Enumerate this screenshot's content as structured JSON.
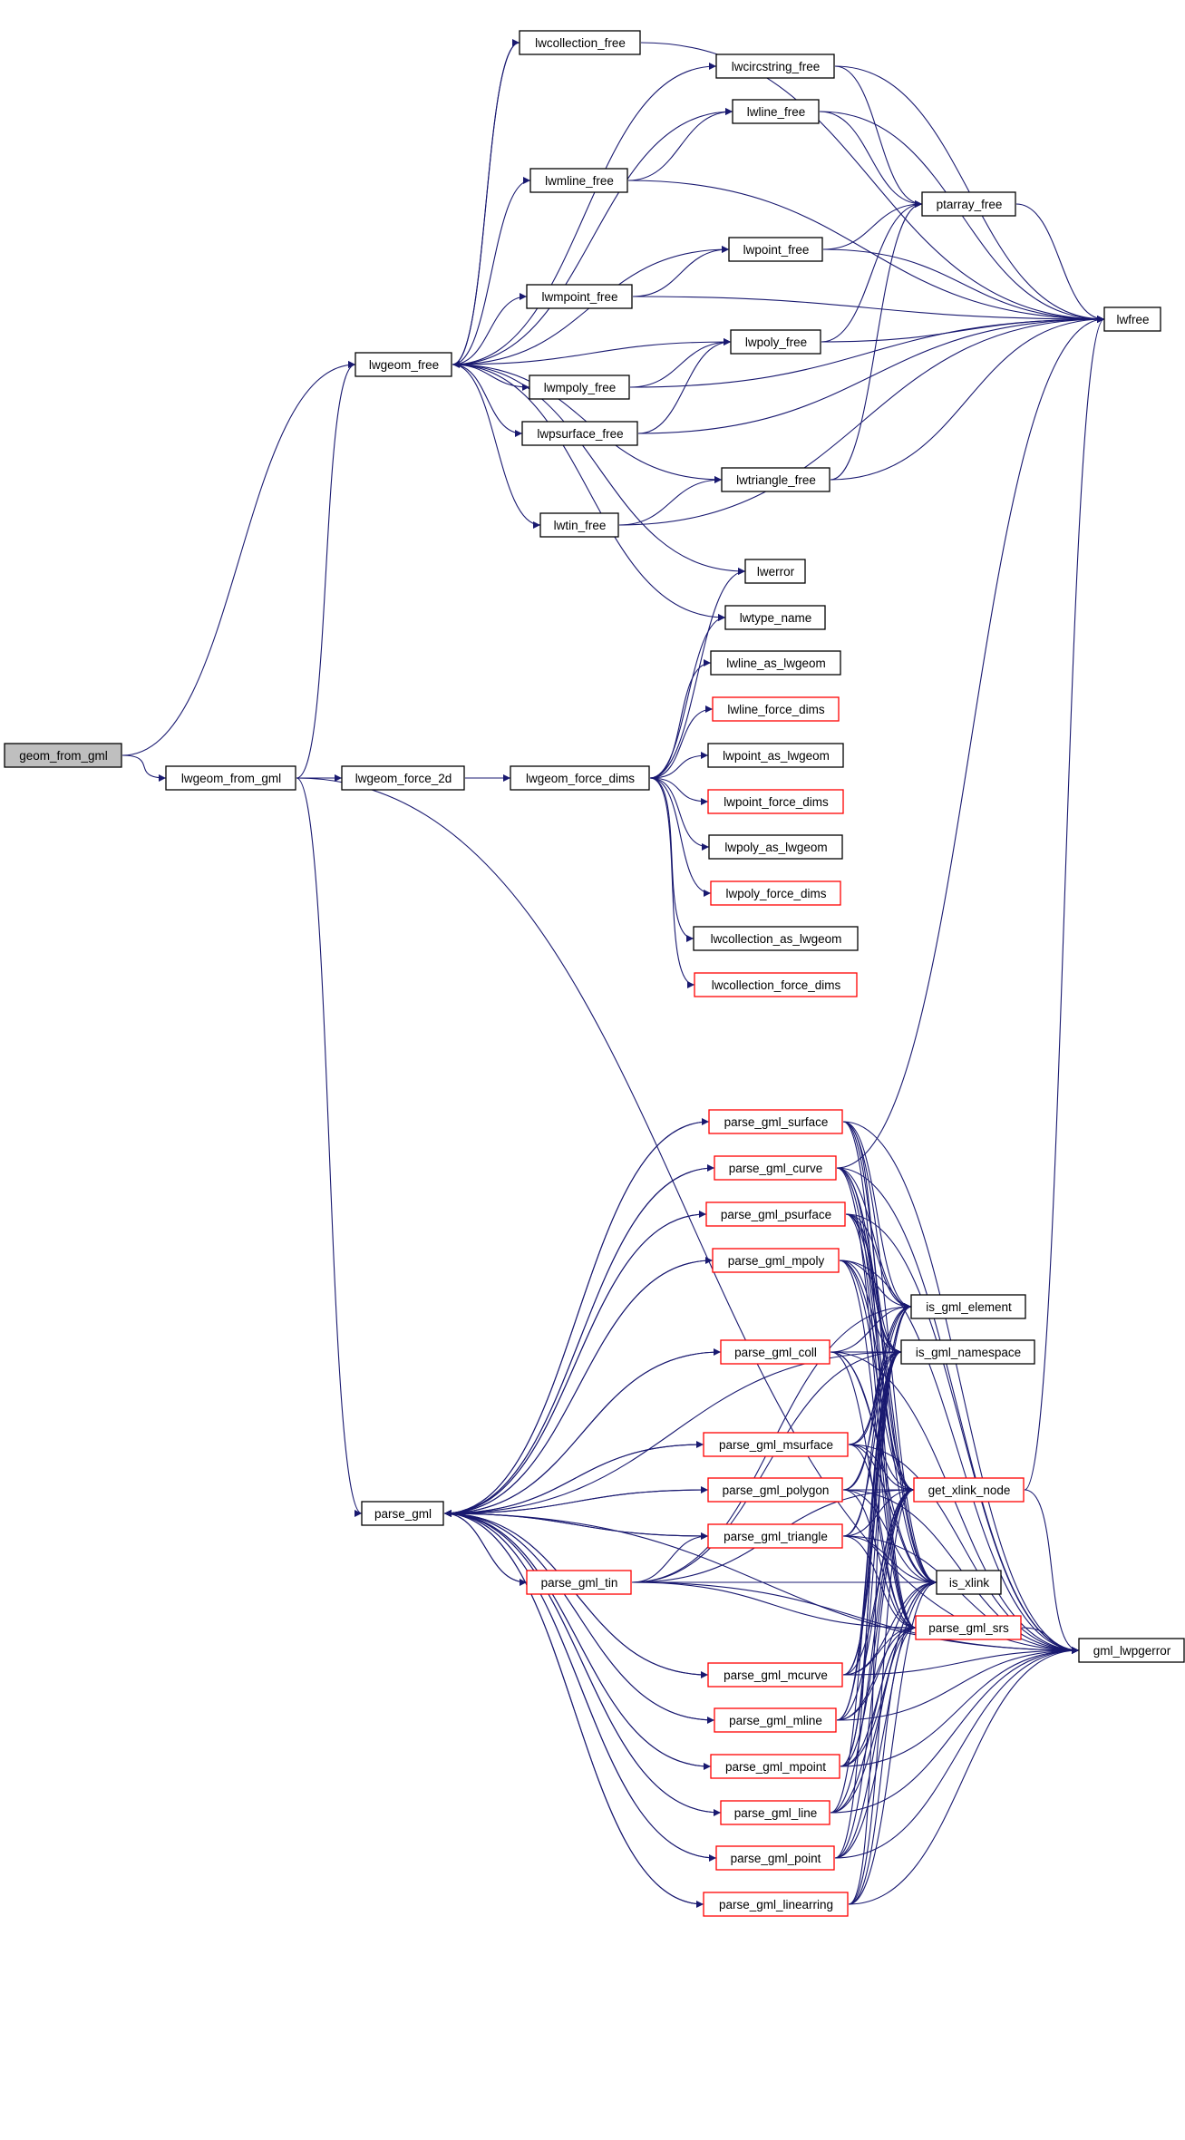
{
  "graph": {
    "type": "call-graph",
    "colors": {
      "edge": "#191970",
      "root_fill": "#bfbfbf",
      "node_fill": "#ffffff",
      "border_default": "#000000",
      "border_truncated": "#ff0000"
    },
    "nodes": [
      {
        "id": "geom_from_gml",
        "label": "geom_from_gml",
        "root": true,
        "truncated": false
      },
      {
        "id": "lwgeom_from_gml",
        "label": "lwgeom_from_gml",
        "truncated": false
      },
      {
        "id": "lwgeom_force_2d",
        "label": "lwgeom_force_2d",
        "truncated": false
      },
      {
        "id": "lwgeom_force_dims",
        "label": "lwgeom_force_dims",
        "truncated": false
      },
      {
        "id": "lwgeom_free",
        "label": "lwgeom_free",
        "truncated": false
      },
      {
        "id": "lwcollection_free",
        "label": "lwcollection_free",
        "truncated": false
      },
      {
        "id": "lwcircstring_free",
        "label": "lwcircstring_free",
        "truncated": false
      },
      {
        "id": "lwline_free",
        "label": "lwline_free",
        "truncated": false
      },
      {
        "id": "lwmline_free",
        "label": "lwmline_free",
        "truncated": false
      },
      {
        "id": "ptarray_free",
        "label": "ptarray_free",
        "truncated": false
      },
      {
        "id": "lwpoint_free",
        "label": "lwpoint_free",
        "truncated": false
      },
      {
        "id": "lwmpoint_free",
        "label": "lwmpoint_free",
        "truncated": false
      },
      {
        "id": "lwfree",
        "label": "lwfree",
        "truncated": false
      },
      {
        "id": "lwpoly_free",
        "label": "lwpoly_free",
        "truncated": false
      },
      {
        "id": "lwmpoly_free",
        "label": "lwmpoly_free",
        "truncated": false
      },
      {
        "id": "lwpsurface_free",
        "label": "lwpsurface_free",
        "truncated": false
      },
      {
        "id": "lwtriangle_free",
        "label": "lwtriangle_free",
        "truncated": false
      },
      {
        "id": "lwtin_free",
        "label": "lwtin_free",
        "truncated": false
      },
      {
        "id": "lwerror",
        "label": "lwerror",
        "truncated": false
      },
      {
        "id": "lwtype_name",
        "label": "lwtype_name",
        "truncated": false
      },
      {
        "id": "lwline_as_lwgeom",
        "label": "lwline_as_lwgeom",
        "truncated": false
      },
      {
        "id": "lwline_force_dims",
        "label": "lwline_force_dims",
        "truncated": true
      },
      {
        "id": "lwpoint_as_lwgeom",
        "label": "lwpoint_as_lwgeom",
        "truncated": false
      },
      {
        "id": "lwpoint_force_dims",
        "label": "lwpoint_force_dims",
        "truncated": true
      },
      {
        "id": "lwpoly_as_lwgeom",
        "label": "lwpoly_as_lwgeom",
        "truncated": false
      },
      {
        "id": "lwpoly_force_dims",
        "label": "lwpoly_force_dims",
        "truncated": true
      },
      {
        "id": "lwcollection_as_lwgeom",
        "label": "lwcollection_as_lwgeom",
        "truncated": false
      },
      {
        "id": "lwcollection_force_dims",
        "label": "lwcollection_force_dims",
        "truncated": true
      },
      {
        "id": "parse_gml",
        "label": "parse_gml",
        "truncated": false
      },
      {
        "id": "parse_gml_surface",
        "label": "parse_gml_surface",
        "truncated": true
      },
      {
        "id": "parse_gml_curve",
        "label": "parse_gml_curve",
        "truncated": true
      },
      {
        "id": "parse_gml_psurface",
        "label": "parse_gml_psurface",
        "truncated": true
      },
      {
        "id": "parse_gml_mpoly",
        "label": "parse_gml_mpoly",
        "truncated": true
      },
      {
        "id": "is_gml_element",
        "label": "is_gml_element",
        "truncated": false
      },
      {
        "id": "parse_gml_coll",
        "label": "parse_gml_coll",
        "truncated": true
      },
      {
        "id": "is_gml_namespace",
        "label": "is_gml_namespace",
        "truncated": false
      },
      {
        "id": "parse_gml_msurface",
        "label": "parse_gml_msurface",
        "truncated": true
      },
      {
        "id": "parse_gml_polygon",
        "label": "parse_gml_polygon",
        "truncated": true
      },
      {
        "id": "get_xlink_node",
        "label": "get_xlink_node",
        "truncated": true
      },
      {
        "id": "parse_gml_triangle",
        "label": "parse_gml_triangle",
        "truncated": true
      },
      {
        "id": "parse_gml_tin",
        "label": "parse_gml_tin",
        "truncated": true
      },
      {
        "id": "is_xlink",
        "label": "is_xlink",
        "truncated": false
      },
      {
        "id": "parse_gml_srs",
        "label": "parse_gml_srs",
        "truncated": true
      },
      {
        "id": "gml_lwpgerror",
        "label": "gml_lwpgerror",
        "truncated": false
      },
      {
        "id": "parse_gml_mcurve",
        "label": "parse_gml_mcurve",
        "truncated": true
      },
      {
        "id": "parse_gml_mline",
        "label": "parse_gml_mline",
        "truncated": true
      },
      {
        "id": "parse_gml_mpoint",
        "label": "parse_gml_mpoint",
        "truncated": true
      },
      {
        "id": "parse_gml_line",
        "label": "parse_gml_line",
        "truncated": true
      },
      {
        "id": "parse_gml_point",
        "label": "parse_gml_point",
        "truncated": true
      },
      {
        "id": "parse_gml_linearring",
        "label": "parse_gml_linearring",
        "truncated": true
      }
    ],
    "edges": [
      [
        "geom_from_gml",
        "lwgeom_free"
      ],
      [
        "geom_from_gml",
        "lwgeom_from_gml"
      ],
      [
        "lwgeom_from_gml",
        "lwgeom_free"
      ],
      [
        "lwgeom_from_gml",
        "lwgeom_force_2d"
      ],
      [
        "lwgeom_from_gml",
        "parse_gml"
      ],
      [
        "lwgeom_from_gml",
        "gml_lwpgerror"
      ],
      [
        "lwgeom_force_2d",
        "lwgeom_force_dims"
      ],
      [
        "lwgeom_force_dims",
        "lwerror"
      ],
      [
        "lwgeom_force_dims",
        "lwtype_name"
      ],
      [
        "lwgeom_force_dims",
        "lwline_as_lwgeom"
      ],
      [
        "lwgeom_force_dims",
        "lwline_force_dims"
      ],
      [
        "lwgeom_force_dims",
        "lwpoint_as_lwgeom"
      ],
      [
        "lwgeom_force_dims",
        "lwpoint_force_dims"
      ],
      [
        "lwgeom_force_dims",
        "lwpoly_as_lwgeom"
      ],
      [
        "lwgeom_force_dims",
        "lwpoly_force_dims"
      ],
      [
        "lwgeom_force_dims",
        "lwcollection_as_lwgeom"
      ],
      [
        "lwgeom_force_dims",
        "lwcollection_force_dims"
      ],
      [
        "lwgeom_free",
        "lwcollection_free"
      ],
      [
        "lwgeom_free",
        "lwcircstring_free"
      ],
      [
        "lwgeom_free",
        "lwline_free"
      ],
      [
        "lwgeom_free",
        "lwmline_free"
      ],
      [
        "lwgeom_free",
        "lwpoint_free"
      ],
      [
        "lwgeom_free",
        "lwmpoint_free"
      ],
      [
        "lwgeom_free",
        "lwpoly_free"
      ],
      [
        "lwgeom_free",
        "lwmpoly_free"
      ],
      [
        "lwgeom_free",
        "lwpsurface_free"
      ],
      [
        "lwgeom_free",
        "lwtriangle_free"
      ],
      [
        "lwgeom_free",
        "lwtin_free"
      ],
      [
        "lwgeom_free",
        "lwerror"
      ],
      [
        "lwgeom_free",
        "lwtype_name"
      ],
      [
        "lwcollection_free",
        "lwgeom_free"
      ],
      [
        "lwcollection_free",
        "lwfree"
      ],
      [
        "lwcircstring_free",
        "ptarray_free"
      ],
      [
        "lwcircstring_free",
        "lwfree"
      ],
      [
        "lwline_free",
        "ptarray_free"
      ],
      [
        "lwline_free",
        "lwfree"
      ],
      [
        "lwmline_free",
        "lwline_free"
      ],
      [
        "lwmline_free",
        "lwfree"
      ],
      [
        "lwpoint_free",
        "ptarray_free"
      ],
      [
        "lwpoint_free",
        "lwfree"
      ],
      [
        "lwmpoint_free",
        "lwpoint_free"
      ],
      [
        "lwmpoint_free",
        "lwfree"
      ],
      [
        "lwpoly_free",
        "ptarray_free"
      ],
      [
        "lwpoly_free",
        "lwfree"
      ],
      [
        "lwmpoly_free",
        "lwpoly_free"
      ],
      [
        "lwmpoly_free",
        "lwfree"
      ],
      [
        "lwpsurface_free",
        "lwpoly_free"
      ],
      [
        "lwpsurface_free",
        "lwfree"
      ],
      [
        "lwtriangle_free",
        "ptarray_free"
      ],
      [
        "lwtriangle_free",
        "lwfree"
      ],
      [
        "lwtin_free",
        "lwtriangle_free"
      ],
      [
        "lwtin_free",
        "lwfree"
      ],
      [
        "ptarray_free",
        "lwfree"
      ],
      [
        "parse_gml",
        "parse_gml_surface"
      ],
      [
        "parse_gml",
        "parse_gml_curve"
      ],
      [
        "parse_gml",
        "parse_gml_psurface"
      ],
      [
        "parse_gml",
        "parse_gml_mpoly"
      ],
      [
        "parse_gml",
        "parse_gml_coll"
      ],
      [
        "parse_gml",
        "parse_gml_msurface"
      ],
      [
        "parse_gml",
        "parse_gml_polygon"
      ],
      [
        "parse_gml",
        "parse_gml_triangle"
      ],
      [
        "parse_gml",
        "parse_gml_tin"
      ],
      [
        "parse_gml",
        "parse_gml_mcurve"
      ],
      [
        "parse_gml",
        "parse_gml_mline"
      ],
      [
        "parse_gml",
        "parse_gml_mpoint"
      ],
      [
        "parse_gml",
        "parse_gml_line"
      ],
      [
        "parse_gml",
        "parse_gml_point"
      ],
      [
        "parse_gml",
        "parse_gml_linearring"
      ],
      [
        "parse_gml",
        "gml_lwpgerror"
      ],
      [
        "parse_gml",
        "is_gml_namespace"
      ],
      [
        "parse_gml_surface",
        "parse_gml"
      ],
      [
        "parse_gml_curve",
        "parse_gml"
      ],
      [
        "parse_gml_psurface",
        "parse_gml"
      ],
      [
        "parse_gml_mpoly",
        "parse_gml"
      ],
      [
        "parse_gml_coll",
        "parse_gml"
      ],
      [
        "parse_gml_msurface",
        "parse_gml"
      ],
      [
        "parse_gml_polygon",
        "parse_gml"
      ],
      [
        "parse_gml_triangle",
        "parse_gml"
      ],
      [
        "parse_gml_tin",
        "parse_gml"
      ],
      [
        "parse_gml_mcurve",
        "parse_gml"
      ],
      [
        "parse_gml_mline",
        "parse_gml"
      ],
      [
        "parse_gml_mpoint",
        "parse_gml"
      ],
      [
        "parse_gml_line",
        "parse_gml"
      ],
      [
        "parse_gml_point",
        "parse_gml"
      ],
      [
        "parse_gml_linearring",
        "parse_gml"
      ],
      [
        "parse_gml_surface",
        "is_gml_element"
      ],
      [
        "parse_gml_surface",
        "is_gml_namespace"
      ],
      [
        "parse_gml_surface",
        "get_xlink_node"
      ],
      [
        "parse_gml_surface",
        "is_xlink"
      ],
      [
        "parse_gml_surface",
        "parse_gml_srs"
      ],
      [
        "parse_gml_surface",
        "gml_lwpgerror"
      ],
      [
        "parse_gml_curve",
        "is_gml_element"
      ],
      [
        "parse_gml_curve",
        "is_gml_namespace"
      ],
      [
        "parse_gml_curve",
        "get_xlink_node"
      ],
      [
        "parse_gml_curve",
        "is_xlink"
      ],
      [
        "parse_gml_curve",
        "parse_gml_srs"
      ],
      [
        "parse_gml_curve",
        "gml_lwpgerror"
      ],
      [
        "parse_gml_curve",
        "lwfree"
      ],
      [
        "parse_gml_psurface",
        "is_gml_element"
      ],
      [
        "parse_gml_psurface",
        "is_gml_namespace"
      ],
      [
        "parse_gml_psurface",
        "get_xlink_node"
      ],
      [
        "parse_gml_psurface",
        "is_xlink"
      ],
      [
        "parse_gml_psurface",
        "parse_gml_srs"
      ],
      [
        "parse_gml_psurface",
        "gml_lwpgerror"
      ],
      [
        "parse_gml_mpoly",
        "is_gml_element"
      ],
      [
        "parse_gml_mpoly",
        "is_gml_namespace"
      ],
      [
        "parse_gml_mpoly",
        "get_xlink_node"
      ],
      [
        "parse_gml_mpoly",
        "is_xlink"
      ],
      [
        "parse_gml_mpoly",
        "parse_gml_srs"
      ],
      [
        "parse_gml_mpoly",
        "gml_lwpgerror"
      ],
      [
        "parse_gml_coll",
        "is_gml_element"
      ],
      [
        "parse_gml_coll",
        "is_gml_namespace"
      ],
      [
        "parse_gml_coll",
        "get_xlink_node"
      ],
      [
        "parse_gml_coll",
        "is_xlink"
      ],
      [
        "parse_gml_coll",
        "parse_gml_srs"
      ],
      [
        "parse_gml_coll",
        "gml_lwpgerror"
      ],
      [
        "parse_gml_msurface",
        "is_gml_element"
      ],
      [
        "parse_gml_msurface",
        "is_gml_namespace"
      ],
      [
        "parse_gml_msurface",
        "get_xlink_node"
      ],
      [
        "parse_gml_msurface",
        "is_xlink"
      ],
      [
        "parse_gml_msurface",
        "parse_gml_srs"
      ],
      [
        "parse_gml_msurface",
        "gml_lwpgerror"
      ],
      [
        "parse_gml_polygon",
        "is_gml_element"
      ],
      [
        "parse_gml_polygon",
        "is_gml_namespace"
      ],
      [
        "parse_gml_polygon",
        "get_xlink_node"
      ],
      [
        "parse_gml_polygon",
        "is_xlink"
      ],
      [
        "parse_gml_polygon",
        "parse_gml_srs"
      ],
      [
        "parse_gml_polygon",
        "gml_lwpgerror"
      ],
      [
        "parse_gml_triangle",
        "is_gml_element"
      ],
      [
        "parse_gml_triangle",
        "is_gml_namespace"
      ],
      [
        "parse_gml_triangle",
        "get_xlink_node"
      ],
      [
        "parse_gml_triangle",
        "is_xlink"
      ],
      [
        "parse_gml_triangle",
        "parse_gml_srs"
      ],
      [
        "parse_gml_triangle",
        "gml_lwpgerror"
      ],
      [
        "parse_gml_tin",
        "parse_gml_triangle"
      ],
      [
        "parse_gml_tin",
        "is_gml_element"
      ],
      [
        "parse_gml_tin",
        "is_gml_namespace"
      ],
      [
        "parse_gml_tin",
        "get_xlink_node"
      ],
      [
        "parse_gml_tin",
        "is_xlink"
      ],
      [
        "parse_gml_tin",
        "parse_gml_srs"
      ],
      [
        "parse_gml_tin",
        "gml_lwpgerror"
      ],
      [
        "parse_gml_mcurve",
        "is_gml_element"
      ],
      [
        "parse_gml_mcurve",
        "is_gml_namespace"
      ],
      [
        "parse_gml_mcurve",
        "get_xlink_node"
      ],
      [
        "parse_gml_mcurve",
        "is_xlink"
      ],
      [
        "parse_gml_mcurve",
        "parse_gml_srs"
      ],
      [
        "parse_gml_mcurve",
        "gml_lwpgerror"
      ],
      [
        "parse_gml_mline",
        "is_gml_element"
      ],
      [
        "parse_gml_mline",
        "is_gml_namespace"
      ],
      [
        "parse_gml_mline",
        "get_xlink_node"
      ],
      [
        "parse_gml_mline",
        "is_xlink"
      ],
      [
        "parse_gml_mline",
        "parse_gml_srs"
      ],
      [
        "parse_gml_mline",
        "gml_lwpgerror"
      ],
      [
        "parse_gml_mpoint",
        "is_gml_element"
      ],
      [
        "parse_gml_mpoint",
        "is_gml_namespace"
      ],
      [
        "parse_gml_mpoint",
        "get_xlink_node"
      ],
      [
        "parse_gml_mpoint",
        "is_xlink"
      ],
      [
        "parse_gml_mpoint",
        "parse_gml_srs"
      ],
      [
        "parse_gml_mpoint",
        "gml_lwpgerror"
      ],
      [
        "parse_gml_line",
        "is_gml_namespace"
      ],
      [
        "parse_gml_line",
        "get_xlink_node"
      ],
      [
        "parse_gml_line",
        "is_xlink"
      ],
      [
        "parse_gml_line",
        "parse_gml_srs"
      ],
      [
        "parse_gml_line",
        "gml_lwpgerror"
      ],
      [
        "parse_gml_point",
        "is_gml_namespace"
      ],
      [
        "parse_gml_point",
        "get_xlink_node"
      ],
      [
        "parse_gml_point",
        "is_xlink"
      ],
      [
        "parse_gml_point",
        "parse_gml_srs"
      ],
      [
        "parse_gml_point",
        "gml_lwpgerror"
      ],
      [
        "parse_gml_linearring",
        "is_gml_namespace"
      ],
      [
        "parse_gml_linearring",
        "get_xlink_node"
      ],
      [
        "parse_gml_linearring",
        "is_xlink"
      ],
      [
        "parse_gml_linearring",
        "parse_gml_srs"
      ],
      [
        "parse_gml_linearring",
        "gml_lwpgerror"
      ],
      [
        "get_xlink_node",
        "lwfree"
      ],
      [
        "get_xlink_node",
        "gml_lwpgerror"
      ],
      [
        "parse_gml_srs",
        "gml_lwpgerror"
      ]
    ]
  }
}
